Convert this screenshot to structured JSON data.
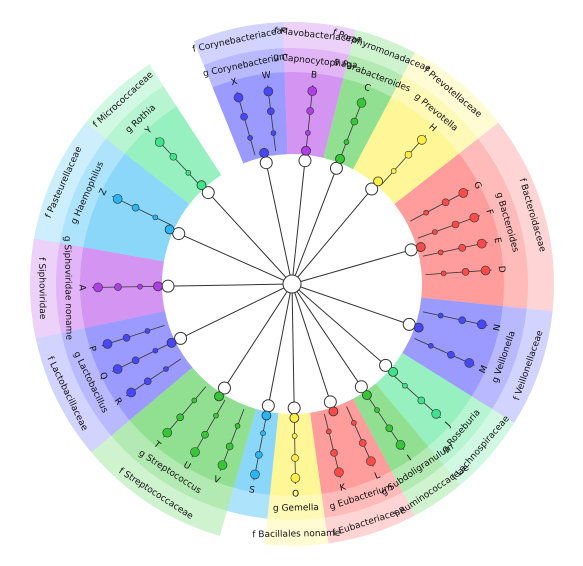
{
  "palette": {
    "red": "#ff4a4a",
    "blue": "#4747ff",
    "green": "#36c736",
    "yellow": "#ffee44",
    "purple": "#b03de8",
    "cyan": "#29b6f6",
    "mint": "#3fe38a",
    "edge": "#333333"
  },
  "diagram": {
    "clades": [
      {
        "id": "D",
        "color": "red",
        "a0": -22,
        "a1": 6,
        "f": "f Bacteroidaceae",
        "g": "g Bacteroides",
        "rf": 1,
        "rg": 1
      },
      {
        "id": "E",
        "color": "red",
        "a0": -22,
        "a1": 6,
        "f": "",
        "g": "",
        "rf": 0,
        "rg": 0
      },
      {
        "id": "F",
        "color": "red",
        "a0": -22,
        "a1": 6,
        "f": "",
        "g": "",
        "rf": 0,
        "rg": 0
      },
      {
        "id": "G",
        "color": "red",
        "a0": -22,
        "a1": 6,
        "f": "",
        "g": "",
        "rf": 0,
        "rg": 0
      }
    ],
    "sectors": [
      {
        "name": "bacteroidaceae",
        "color": "red",
        "a0": -38,
        "a1": 6,
        "fam": true,
        "fl": "f Bacteroidaceae",
        "gl": "g Bacteroides"
      },
      {
        "name": "veillonellaceae",
        "color": "blue",
        "a0": 6,
        "a1": 32,
        "fam": true,
        "fl": "f Veillonellaceae",
        "gl": "g Veillonella"
      },
      {
        "name": "lachnospiraceae",
        "color": "mint",
        "a0": 32,
        "a1": 50,
        "fam": true,
        "fl": "f Lachnospiraceae",
        "gl": "g Roseburia"
      },
      {
        "name": "ruminococcaceae",
        "color": "green",
        "a0": 50,
        "a1": 62,
        "fam": true,
        "fl": "f Ruminococcaceae",
        "gl": "g Subdoligranulum"
      },
      {
        "name": "eubacteriaceae",
        "color": "red",
        "a0": 62,
        "a1": 82,
        "fam": true,
        "fl": "f Eubacteriaceae",
        "gl": "g Eubacterium"
      },
      {
        "name": "bacillales",
        "color": "yellow",
        "a0": 82,
        "a1": 96,
        "fam": true,
        "fl": "f Bacillales noname",
        "gl": "g Gemella"
      },
      {
        "name": "s-leaf",
        "color": "cyan",
        "a0": 96,
        "a1": 106,
        "fam": false,
        "fl": "",
        "gl": ""
      },
      {
        "name": "streptococcaceae",
        "color": "green",
        "a0": 106,
        "a1": 140,
        "fam": true,
        "fl": "f Streptococcaceae",
        "gl": "g Streptococcus"
      },
      {
        "name": "lactobacillaceae",
        "color": "blue",
        "a0": 140,
        "a1": 168,
        "fam": true,
        "fl": "f Lactobacillaceae",
        "gl": "g Lactobacillus"
      },
      {
        "name": "siphoviridae",
        "color": "purple",
        "a0": 168,
        "a1": 190,
        "fam": true,
        "fl": "f Siphoviridae",
        "gl": "g Siphoviridae noname"
      },
      {
        "name": "pasteurellaceae",
        "color": "cyan",
        "a0": 190,
        "a1": 218,
        "fam": true,
        "fl": "f Pasteurellaceae",
        "gl": "g Haemophilus"
      },
      {
        "name": "micrococcaceae",
        "color": "mint",
        "a0": 218,
        "a1": 237,
        "fam": true,
        "fl": "f Micrococcaceae",
        "gl": "g Rothia"
      },
      {
        "name": "corynebacteriaceae",
        "color": "blue",
        "a0": 248,
        "a1": 268,
        "fam": true,
        "fl": "f Corynebacteriaceae",
        "gl": "g Corynebacterium"
      },
      {
        "name": "flavobacteriaceae",
        "color": "purple",
        "a0": 268,
        "a1": 284,
        "fam": true,
        "fl": "f Flavobacteriaceae",
        "gl": "g Capnocytophaga"
      },
      {
        "name": "porphyromonadaceae",
        "color": "green",
        "a0": 284,
        "a1": 298,
        "fam": true,
        "fl": "f Porphyromonadaceae",
        "gl": "g Parabacteroides"
      },
      {
        "name": "prevotellaceae",
        "color": "yellow",
        "a0": 298,
        "a1": 322,
        "fam": true,
        "fl": "f Prevotellaceae",
        "gl": "g Prevotella"
      }
    ],
    "leaves": [
      {
        "letter": "D",
        "a": -4,
        "color": "red"
      },
      {
        "letter": "E",
        "a": -12,
        "color": "red"
      },
      {
        "letter": "F",
        "a": -20,
        "color": "red"
      },
      {
        "letter": "G",
        "a": -28,
        "color": "red"
      },
      {
        "letter": "M",
        "a": 24,
        "color": "blue"
      },
      {
        "letter": "N",
        "a": 12,
        "color": "blue"
      },
      {
        "letter": "J",
        "a": 42,
        "color": "mint"
      },
      {
        "letter": "I",
        "a": 56,
        "color": "green"
      },
      {
        "letter": "L",
        "a": 66,
        "color": "red"
      },
      {
        "letter": "K",
        "a": 76,
        "color": "red"
      },
      {
        "letter": "O",
        "a": 89,
        "color": "yellow"
      },
      {
        "letter": "S",
        "a": 101,
        "color": "cyan"
      },
      {
        "letter": "V",
        "a": 111,
        "color": "green"
      },
      {
        "letter": "U",
        "a": 120,
        "color": "green"
      },
      {
        "letter": "T",
        "a": 130,
        "color": "green"
      },
      {
        "letter": "R",
        "a": 146,
        "color": "blue"
      },
      {
        "letter": "Q",
        "a": 154,
        "color": "blue"
      },
      {
        "letter": "P",
        "a": 162,
        "color": "blue"
      },
      {
        "letter": "A",
        "a": 179,
        "color": "purple"
      },
      {
        "letter": "Z",
        "a": 206,
        "color": "cyan"
      },
      {
        "letter": "Y",
        "a": 227,
        "color": "mint"
      },
      {
        "letter": "X",
        "a": 254,
        "color": "blue"
      },
      {
        "letter": "W",
        "a": 263,
        "color": "blue"
      },
      {
        "letter": "B",
        "a": 276,
        "color": "purple"
      },
      {
        "letter": "C",
        "a": 291,
        "color": "green"
      },
      {
        "letter": "H",
        "a": 312,
        "color": "yellow"
      }
    ]
  }
}
